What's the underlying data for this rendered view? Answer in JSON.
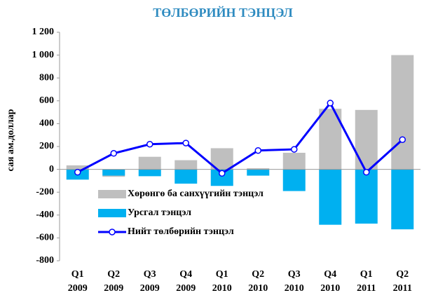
{
  "chart_data": {
    "type": "bar",
    "title": "ТӨЛБӨРИЙН ТЭНЦЭЛ",
    "title_color": "#2e8bc0",
    "ylabel": "сая ам.доллар",
    "categories": [
      "Q1 2009",
      "Q2 2009",
      "Q3 2009",
      "Q4 2009",
      "Q1 2010",
      "Q2 2010",
      "Q3 2010",
      "Q4 2010",
      "Q1 2011",
      "Q2 2011"
    ],
    "series": [
      {
        "name": "Хөрөнгө ба санхүүгийн тэнцэл",
        "type": "bar",
        "color": "#bfbfbf",
        "values": [
          35,
          -65,
          110,
          80,
          185,
          10,
          145,
          530,
          520,
          1000
        ]
      },
      {
        "name": "Урсгал тэнцэл",
        "type": "bar",
        "color": "#00b0f0",
        "values": [
          -90,
          -55,
          -60,
          -125,
          -145,
          -55,
          -190,
          -485,
          -475,
          -525
        ]
      },
      {
        "name": "Нийт төлбөрийн тэнцэл",
        "type": "line",
        "color": "#0000ff",
        "values": [
          -25,
          140,
          220,
          230,
          -35,
          165,
          175,
          580,
          -25,
          260
        ]
      }
    ],
    "ylim": [
      -800,
      1200
    ],
    "yticks": [
      -800,
      -600,
      -400,
      -200,
      0,
      200,
      400,
      600,
      800,
      {
        "value": 1000,
        "label": "1 000"
      },
      {
        "value": 1200,
        "label": "1 200"
      }
    ],
    "grid": false,
    "legend": "lower left"
  }
}
